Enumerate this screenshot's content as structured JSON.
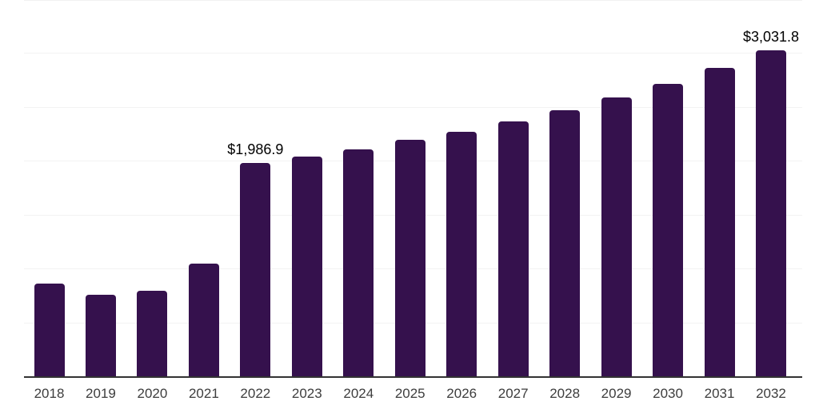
{
  "chart_data": {
    "type": "bar",
    "title": "",
    "xlabel": "",
    "ylabel": "",
    "categories": [
      "2018",
      "2019",
      "2020",
      "2021",
      "2022",
      "2023",
      "2024",
      "2025",
      "2026",
      "2027",
      "2028",
      "2029",
      "2030",
      "2031",
      "2032"
    ],
    "values": [
      866,
      762,
      799,
      1050,
      1986.9,
      2050,
      2116,
      2205,
      2280,
      2375,
      2480,
      2596,
      2722,
      2870,
      3031.8
    ],
    "annotations": [
      {
        "category": "2022",
        "text": "$1,986.9"
      },
      {
        "category": "2032",
        "text": "$3,031.8"
      }
    ],
    "ylim": [
      0,
      3500
    ],
    "gridline_step": 500,
    "grid": "horizontal-only",
    "legend_position": "none",
    "y_tick_labels_visible": false,
    "colors": {
      "bar": "#35114d",
      "axis_line": "#333333",
      "gridline": "#f2f2f2",
      "x_label_text": "#3d3d3d",
      "value_label_text": "#000000",
      "background": "#ffffff"
    }
  }
}
